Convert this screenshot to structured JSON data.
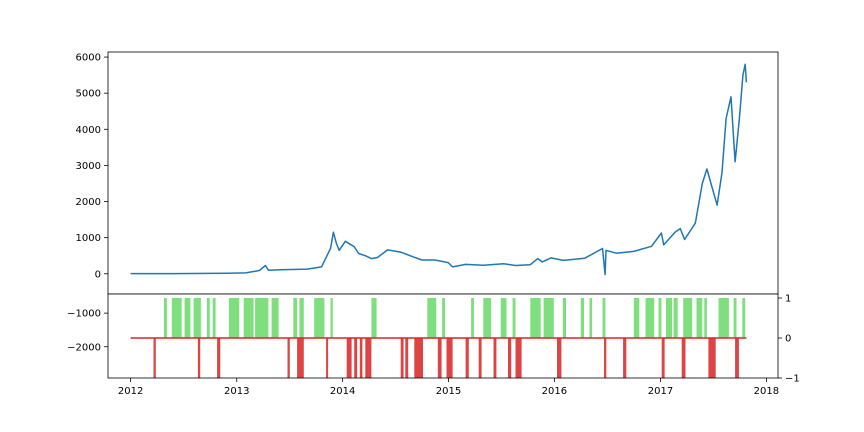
{
  "chart_data": {
    "type": "line",
    "title": "",
    "xlabel": "",
    "ylabel": "",
    "x_ticks": [
      "2012",
      "2013",
      "2014",
      "2015",
      "2016",
      "2017",
      "2018"
    ],
    "xlim": [
      "2011-10-15",
      "2018-02-10"
    ],
    "price": {
      "ylim": [
        -560,
        6140
      ],
      "y_ticks": [
        0,
        1000,
        2000,
        3000,
        4000,
        5000,
        6000
      ],
      "color": "#1f77b4",
      "points": [
        [
          "2012-01-01",
          5
        ],
        [
          "2012-06-01",
          6
        ],
        [
          "2012-12-01",
          13
        ],
        [
          "2013-02-01",
          25
        ],
        [
          "2013-03-20",
          90
        ],
        [
          "2013-04-10",
          230
        ],
        [
          "2013-04-20",
          100
        ],
        [
          "2013-06-01",
          110
        ],
        [
          "2013-09-01",
          130
        ],
        [
          "2013-10-20",
          190
        ],
        [
          "2013-11-20",
          700
        ],
        [
          "2013-11-30",
          1150
        ],
        [
          "2013-12-10",
          850
        ],
        [
          "2013-12-20",
          650
        ],
        [
          "2014-01-10",
          900
        ],
        [
          "2014-02-10",
          750
        ],
        [
          "2014-02-25",
          560
        ],
        [
          "2014-03-20",
          500
        ],
        [
          "2014-04-10",
          420
        ],
        [
          "2014-05-01",
          450
        ],
        [
          "2014-06-05",
          660
        ],
        [
          "2014-07-20",
          600
        ],
        [
          "2014-09-01",
          470
        ],
        [
          "2014-10-01",
          380
        ],
        [
          "2014-11-15",
          380
        ],
        [
          "2014-12-31",
          310
        ],
        [
          "2015-01-15",
          190
        ],
        [
          "2015-03-01",
          260
        ],
        [
          "2015-05-01",
          235
        ],
        [
          "2015-07-10",
          280
        ],
        [
          "2015-08-20",
          230
        ],
        [
          "2015-10-10",
          250
        ],
        [
          "2015-11-05",
          420
        ],
        [
          "2015-11-20",
          330
        ],
        [
          "2015-12-20",
          440
        ],
        [
          "2016-02-01",
          370
        ],
        [
          "2016-04-15",
          430
        ],
        [
          "2016-06-15",
          700
        ],
        [
          "2016-06-24",
          -20
        ],
        [
          "2016-06-27",
          650
        ],
        [
          "2016-08-01",
          570
        ],
        [
          "2016-10-01",
          620
        ],
        [
          "2016-12-01",
          760
        ],
        [
          "2017-01-04",
          1130
        ],
        [
          "2017-01-12",
          800
        ],
        [
          "2017-02-20",
          1150
        ],
        [
          "2017-03-10",
          1250
        ],
        [
          "2017-03-25",
          950
        ],
        [
          "2017-05-01",
          1400
        ],
        [
          "2017-05-25",
          2500
        ],
        [
          "2017-06-10",
          2900
        ],
        [
          "2017-07-15",
          1900
        ],
        [
          "2017-08-01",
          2800
        ],
        [
          "2017-08-15",
          4300
        ],
        [
          "2017-09-01",
          4900
        ],
        [
          "2017-09-15",
          3100
        ],
        [
          "2017-09-30",
          4300
        ],
        [
          "2017-10-12",
          5500
        ],
        [
          "2017-10-20",
          5800
        ],
        [
          "2017-10-24",
          5300
        ]
      ]
    },
    "signal": {
      "left_ylim": [
        -2930,
        -430
      ],
      "left_y_ticks": [
        -1000,
        -2000
      ],
      "right_ylim": [
        -1,
        1.1
      ],
      "right_y_ticks": [
        1,
        0,
        -1
      ],
      "baseline_color": "#d62728",
      "buy_color": "#7fdf7f",
      "sell_color": "#dd4444",
      "buy_periods": [
        [
          "2012-04-25",
          "2012-05-05"
        ],
        [
          "2012-05-22",
          "2012-06-25"
        ],
        [
          "2012-07-05",
          "2012-07-25"
        ],
        [
          "2012-08-05",
          "2012-08-30"
        ],
        [
          "2012-09-20",
          "2012-09-30"
        ],
        [
          "2012-10-10",
          "2012-10-20"
        ],
        [
          "2012-12-05",
          "2013-01-10"
        ],
        [
          "2013-01-25",
          "2013-02-28"
        ],
        [
          "2013-03-05",
          "2013-04-20"
        ],
        [
          "2013-05-01",
          "2013-05-25"
        ],
        [
          "2013-07-15",
          "2013-07-28"
        ],
        [
          "2013-08-05",
          "2013-08-20"
        ],
        [
          "2013-09-25",
          "2013-10-30"
        ],
        [
          "2013-11-20",
          "2013-11-28"
        ],
        [
          "2014-04-10",
          "2014-04-28"
        ],
        [
          "2014-10-20",
          "2014-11-20"
        ],
        [
          "2014-12-10",
          "2014-12-20"
        ],
        [
          "2015-03-20",
          "2015-03-30"
        ],
        [
          "2015-05-01",
          "2015-05-28"
        ],
        [
          "2015-06-30",
          "2015-07-20"
        ],
        [
          "2015-08-10",
          "2015-08-20"
        ],
        [
          "2015-10-10",
          "2015-11-15"
        ],
        [
          "2015-11-25",
          "2015-12-30"
        ],
        [
          "2016-01-30",
          "2016-02-10"
        ],
        [
          "2016-04-01",
          "2016-04-12"
        ],
        [
          "2016-05-01",
          "2016-05-10"
        ],
        [
          "2016-06-15",
          "2016-06-25"
        ],
        [
          "2016-10-01",
          "2016-10-20"
        ],
        [
          "2016-11-10",
          "2016-12-10"
        ],
        [
          "2016-12-25",
          "2017-01-04"
        ],
        [
          "2017-01-20",
          "2017-02-10"
        ],
        [
          "2017-02-15",
          "2017-03-01"
        ],
        [
          "2017-03-20",
          "2017-04-20"
        ],
        [
          "2017-05-05",
          "2017-05-25"
        ],
        [
          "2017-06-01",
          "2017-06-10"
        ],
        [
          "2017-07-20",
          "2017-08-25"
        ],
        [
          "2017-09-10",
          "2017-09-20"
        ],
        [
          "2017-10-10",
          "2017-10-20"
        ]
      ],
      "sell_periods": [
        [
          "2012-03-20",
          "2012-03-28"
        ],
        [
          "2012-08-20",
          "2012-08-28"
        ],
        [
          "2012-10-25",
          "2012-11-05"
        ],
        [
          "2013-06-25",
          "2013-07-03"
        ],
        [
          "2013-07-28",
          "2013-08-20"
        ],
        [
          "2013-11-05",
          "2013-11-12"
        ],
        [
          "2014-01-15",
          "2014-02-01"
        ],
        [
          "2014-02-10",
          "2014-02-20"
        ],
        [
          "2014-03-01",
          "2014-03-10"
        ],
        [
          "2014-03-20",
          "2014-04-10"
        ],
        [
          "2014-07-20",
          "2014-07-30"
        ],
        [
          "2014-08-05",
          "2014-08-15"
        ],
        [
          "2014-09-05",
          "2014-10-05"
        ],
        [
          "2014-11-25",
          "2014-12-08"
        ],
        [
          "2014-12-25",
          "2015-01-15"
        ],
        [
          "2015-03-01",
          "2015-03-12"
        ],
        [
          "2015-04-15",
          "2015-04-25"
        ],
        [
          "2015-06-05",
          "2015-06-15"
        ],
        [
          "2015-07-25",
          "2015-08-05"
        ],
        [
          "2015-08-20",
          "2015-09-10"
        ],
        [
          "2016-01-10",
          "2016-01-25"
        ],
        [
          "2016-06-20",
          "2016-06-28"
        ],
        [
          "2016-08-25",
          "2016-09-05"
        ],
        [
          "2017-01-05",
          "2017-01-15"
        ],
        [
          "2017-03-15",
          "2017-03-28"
        ],
        [
          "2017-06-15",
          "2017-07-10"
        ],
        [
          "2017-09-15",
          "2017-09-28"
        ]
      ]
    }
  }
}
